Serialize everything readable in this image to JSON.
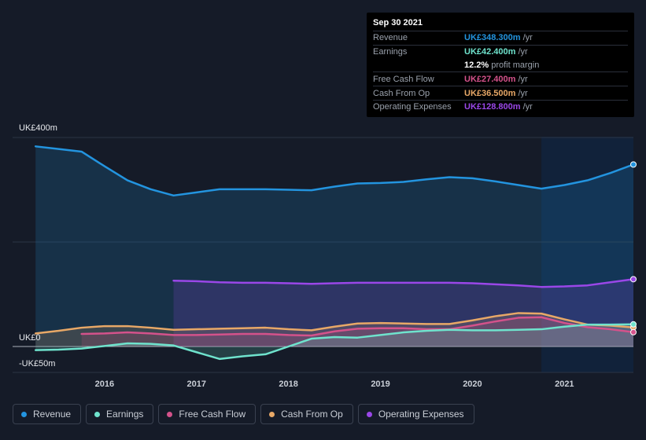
{
  "tooltip": {
    "date": "Sep 30 2021",
    "rows": [
      {
        "label": "Revenue",
        "value": "UK£348.300m",
        "unit": "/yr",
        "color": "#2394df"
      },
      {
        "label": "Earnings",
        "value": "UK£42.400m",
        "unit": "/yr",
        "color": "#6fe3cd"
      },
      {
        "label": "",
        "value": "12.2%",
        "unit": "profit margin",
        "color": "#ffffff"
      },
      {
        "label": "Free Cash Flow",
        "value": "UK£27.400m",
        "unit": "/yr",
        "color": "#d4528b"
      },
      {
        "label": "Cash From Op",
        "value": "UK£36.500m",
        "unit": "/yr",
        "color": "#e8a867"
      },
      {
        "label": "Operating Expenses",
        "value": "UK£128.800m",
        "unit": "/yr",
        "color": "#9a47e8"
      }
    ]
  },
  "legend": [
    {
      "label": "Revenue",
      "color": "#2394df"
    },
    {
      "label": "Earnings",
      "color": "#6fe3cd"
    },
    {
      "label": "Free Cash Flow",
      "color": "#d4528b"
    },
    {
      "label": "Cash From Op",
      "color": "#e8a867"
    },
    {
      "label": "Operating Expenses",
      "color": "#9a47e8"
    }
  ],
  "chart_data": {
    "type": "area",
    "ylim": [
      -50,
      400
    ],
    "y_ticks": [
      {
        "value": 400,
        "label": "UK£400m"
      },
      {
        "value": 0,
        "label": "UK£0"
      },
      {
        "value": -50,
        "label": "-UK£50m"
      }
    ],
    "x_ticks": [
      {
        "value": 2016.0,
        "label": "2016"
      },
      {
        "value": 2017.0,
        "label": "2017"
      },
      {
        "value": 2018.0,
        "label": "2018"
      },
      {
        "value": 2019.0,
        "label": "2019"
      },
      {
        "value": 2020.0,
        "label": "2020"
      },
      {
        "value": 2021.0,
        "label": "2021"
      }
    ],
    "xlim": [
      2015.0,
      2021.75
    ],
    "highlight_start": 2020.75,
    "series": [
      {
        "name": "Revenue",
        "color": "#2394df",
        "fill": true,
        "x": [
          2015.25,
          2015.5,
          2015.75,
          2016.0,
          2016.25,
          2016.5,
          2016.75,
          2017.0,
          2017.25,
          2017.5,
          2017.75,
          2018.0,
          2018.25,
          2018.5,
          2018.75,
          2019.0,
          2019.25,
          2019.5,
          2019.75,
          2020.0,
          2020.25,
          2020.5,
          2020.75,
          2021.0,
          2021.25,
          2021.5,
          2021.75
        ],
        "y": [
          383,
          378,
          373,
          345,
          318,
          301,
          289,
          295,
          301,
          301,
          301,
          300,
          299,
          306,
          312,
          313,
          315,
          320,
          324,
          322,
          316,
          309,
          302,
          309,
          318,
          332,
          348.3
        ]
      },
      {
        "name": "Operating Expenses",
        "color": "#9a47e8",
        "fill": true,
        "x": [
          2016.75,
          2017.0,
          2017.25,
          2017.5,
          2017.75,
          2018.0,
          2018.25,
          2018.5,
          2018.75,
          2019.0,
          2019.25,
          2019.5,
          2019.75,
          2020.0,
          2020.25,
          2020.5,
          2020.75,
          2021.0,
          2021.25,
          2021.5,
          2021.75
        ],
        "y": [
          126,
          125,
          123,
          122,
          122,
          121,
          120,
          121,
          122,
          122,
          122,
          122,
          122,
          121,
          119,
          117,
          114,
          115,
          117,
          123,
          128.8
        ]
      },
      {
        "name": "Cash From Op",
        "color": "#e8a867",
        "fill": true,
        "x": [
          2015.25,
          2015.5,
          2015.75,
          2016.0,
          2016.25,
          2016.5,
          2016.75,
          2017.0,
          2017.25,
          2017.5,
          2017.75,
          2018.0,
          2018.25,
          2018.5,
          2018.75,
          2019.0,
          2019.25,
          2019.5,
          2019.75,
          2020.0,
          2020.25,
          2020.5,
          2020.75,
          2021.0,
          2021.25,
          2021.5,
          2021.75
        ],
        "y": [
          25,
          30,
          36,
          39,
          39,
          36,
          32,
          33,
          34,
          35,
          36,
          33,
          31,
          38,
          44,
          45,
          44,
          43,
          43,
          50,
          58,
          64,
          63,
          52,
          42,
          40,
          36.5
        ]
      },
      {
        "name": "Free Cash Flow",
        "color": "#d4528b",
        "fill": true,
        "x": [
          2015.75,
          2016.0,
          2016.25,
          2016.5,
          2016.75,
          2017.0,
          2017.25,
          2017.5,
          2017.75,
          2018.0,
          2018.25,
          2018.5,
          2018.75,
          2019.0,
          2019.25,
          2019.5,
          2019.75,
          2020.0,
          2020.25,
          2020.5,
          2020.75,
          2021.0,
          2021.25,
          2021.5,
          2021.75
        ],
        "y": [
          24,
          25,
          27,
          25,
          22,
          22,
          23,
          24,
          24,
          22,
          21,
          29,
          34,
          35,
          35,
          33,
          33,
          40,
          48,
          55,
          56,
          45,
          37,
          33,
          27.4
        ]
      },
      {
        "name": "Earnings",
        "color": "#6fe3cd",
        "fill": true,
        "x": [
          2015.25,
          2015.5,
          2015.75,
          2016.0,
          2016.25,
          2016.5,
          2016.75,
          2017.0,
          2017.25,
          2017.5,
          2017.75,
          2018.0,
          2018.25,
          2018.5,
          2018.75,
          2019.0,
          2019.25,
          2019.5,
          2019.75,
          2020.0,
          2020.25,
          2020.5,
          2020.75,
          2021.0,
          2021.25,
          2021.5,
          2021.75
        ],
        "y": [
          -7,
          -6,
          -4,
          1,
          6,
          5,
          2,
          -11,
          -24,
          -19,
          -15,
          0,
          15,
          18,
          17,
          22,
          27,
          30,
          32,
          31,
          31,
          32,
          33,
          38,
          42,
          42,
          42.4
        ]
      }
    ]
  }
}
